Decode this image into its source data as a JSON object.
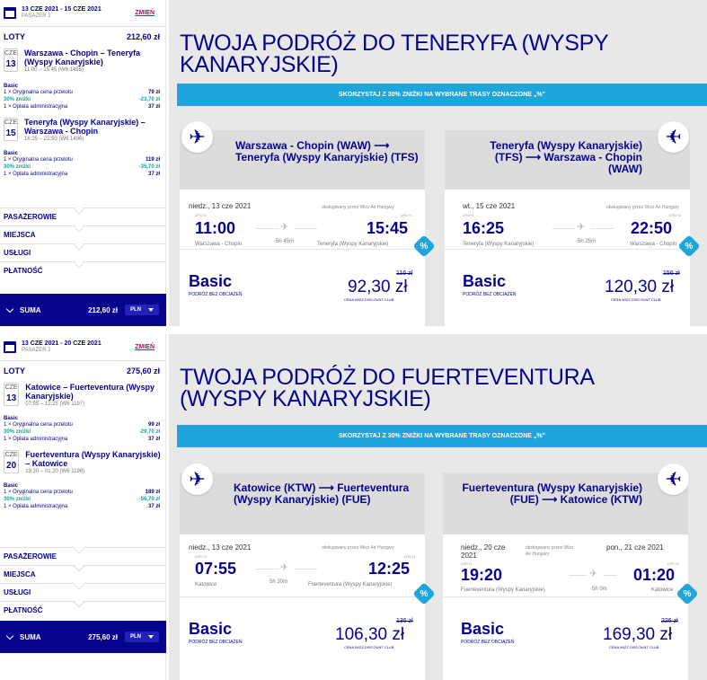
{
  "trip1": {
    "header": {
      "dates": "13 CZE 2021 - 15 CZE 2021",
      "passenger": "PASAŻER 1",
      "change": "ZMIEŃ"
    },
    "flights_label": "LOTY",
    "flights_total": "212,60 zł",
    "legs": [
      {
        "month": "CZE",
        "day": "13",
        "route": "Warszawa - Chopin – Teneryfa (Wyspy Kanaryjskie)",
        "time": "11:00 – 15:45 (W6 1495)",
        "fare_name": "Basic",
        "lines": [
          {
            "label": "1 × Oryginalna cena przelotu",
            "value": "79 zł",
            "disc": false
          },
          {
            "label": "30% zniżki",
            "value": "-23,70 zł",
            "disc": true
          },
          {
            "label": "1 × Opłata administracyjna",
            "value": "37 zł",
            "disc": false
          }
        ]
      },
      {
        "month": "CZE",
        "day": "15",
        "route": "Teneryfa (Wyspy Kanaryjskie) – Warszawa - Chopin",
        "time": "16:25 – 22:50 (W6 1496)",
        "fare_name": "Basic",
        "lines": [
          {
            "label": "1 × Oryginalna cena przelotu",
            "value": "119 zł",
            "disc": false
          },
          {
            "label": "30% zniżki",
            "value": "-35,70 zł",
            "disc": true
          },
          {
            "label": "1 × Opłata administracyjna",
            "value": "37 zł",
            "disc": false
          }
        ]
      }
    ],
    "sections": [
      "PASAŻEROWIE",
      "MIEJSCA",
      "USŁUGI",
      "PŁATNOŚĆ"
    ],
    "sum_label": "SUMA",
    "sum_value": "212,60 zł",
    "currency": "PLN",
    "title": "TWOJA PODRÓŻ DO TENERYFA (WYSPY KANARYJSKIE)",
    "banner": "SKORZYSTAJ Z 30% ZNIŻKI NA WYBRANE TRASY OZNACZONE „%\"",
    "cards": [
      {
        "route": "Warszawa - Chopin (WAW) ⟶ Teneryfa (Wyspy Kanaryjskie) (TFS)",
        "dep_date": "niedz., 13 cze 2021",
        "arr_date": "",
        "operated": "obsługiwany przez Wizz Air Hungary",
        "dep_utc": "UTC+2",
        "arr_utc": "UTC+1",
        "dep_time": "11:00",
        "arr_time": "15:45",
        "duration": "5h 45m",
        "dep_airport": "Warszawa - Chopin",
        "arr_airport": "Teneryfa (Wyspy Kanaryjskie)",
        "fare": "Basic",
        "fare_sub": "PODRÓŻ BEZ OBCIĄŻEŃ",
        "old_price": "116 zł",
        "price": "92,30 zł",
        "club": "CENA WIZZ DISCOUNT CLUB",
        "pct": "%"
      },
      {
        "route": "Teneryfa (Wyspy Kanaryjskie) (TFS) ⟶ Warszawa - Chopin (WAW)",
        "dep_date": "wt., 15 cze 2021",
        "arr_date": "",
        "operated": "obsługiwany przez Wizz Air Hungary",
        "dep_utc": "UTC+1",
        "arr_utc": "UTC+2",
        "dep_time": "16:25",
        "arr_time": "22:50",
        "duration": "5h 25m",
        "dep_airport": "Teneryfa (Wyspy Kanaryjskie)",
        "arr_airport": "Warszawa - Chopin",
        "fare": "Basic",
        "fare_sub": "PODRÓŻ BEZ OBCIĄŻEŃ",
        "old_price": "156 zł",
        "price": "120,30 zł",
        "club": "CENA WIZZ DISCOUNT CLUB",
        "pct": "%"
      }
    ]
  },
  "trip2": {
    "header": {
      "dates": "13 CZE 2021 - 20 CZE 2021",
      "passenger": "PASAŻER 1",
      "change": "ZMIEŃ"
    },
    "flights_label": "LOTY",
    "flights_total": "275,60 zł",
    "legs": [
      {
        "month": "CZE",
        "day": "13",
        "route": "Katowice – Fuerteventura (Wyspy Kanaryjskie)",
        "time": "07:55 – 12:25 (W6 1197)",
        "fare_name": "Basic",
        "lines": [
          {
            "label": "1 × Oryginalna cena przelotu",
            "value": "99 zł",
            "disc": false
          },
          {
            "label": "30% zniżki",
            "value": "-29,70 zł",
            "disc": true
          },
          {
            "label": "1 × Opłata administracyjna",
            "value": "37 zł",
            "disc": false
          }
        ]
      },
      {
        "month": "CZE",
        "day": "20",
        "route": "Fuerteventura (Wyspy Kanaryjskie) – Katowice",
        "time": "19:20 – 01:20 (W6 1198)",
        "fare_name": "Basic",
        "lines": [
          {
            "label": "1 × Oryginalna cena przelotu",
            "value": "189 zł",
            "disc": false
          },
          {
            "label": "30% zniżki",
            "value": "-56,70 zł",
            "disc": true
          },
          {
            "label": "1 × Opłata administracyjna",
            "value": "37 zł",
            "disc": false
          }
        ]
      }
    ],
    "sections": [
      "PASAŻEROWIE",
      "MIEJSCA",
      "USŁUGI",
      "PŁATNOŚĆ"
    ],
    "sum_label": "SUMA",
    "sum_value": "275,60 zł",
    "currency": "PLN",
    "title": "TWOJA PODRÓŻ DO FUERTEVENTURA (WYSPY KANARYJSKIE)",
    "banner": "SKORZYSTAJ Z 30% ZNIŻKI NA WYBRANE TRASY OZNACZONE „%\"",
    "cards": [
      {
        "route": "Katowice (KTW) ⟶ Fuerteventura (Wyspy Kanaryjskie) (FUE)",
        "dep_date": "niedz., 13 cze 2021",
        "arr_date": "",
        "operated": "obsługiwany przez Wizz Air Hungary",
        "dep_utc": "UTC+2",
        "arr_utc": "UTC+1",
        "dep_time": "07:55",
        "arr_time": "12:25",
        "duration": "5h 30m",
        "dep_airport": "Katowice",
        "arr_airport": "Fuerteventura (Wyspy Kanaryjskie)",
        "fare": "Basic",
        "fare_sub": "PODRÓŻ BEZ OBCIĄŻEŃ",
        "old_price": "136 zł",
        "price": "106,30 zł",
        "club": "CENA WIZZ DISCOUNT CLUB",
        "pct": "%"
      },
      {
        "route": "Fuerteventura (Wyspy Kanaryjskie) (FUE) ⟶ Katowice (KTW)",
        "dep_date": "niedz., 20 cze 2021",
        "arr_date": "pon., 21 cze 2021",
        "operated": "obsługiwany przez Wizz Air Hungary",
        "dep_utc": "UTC+1",
        "arr_utc": "UTC+2",
        "dep_time": "19:20",
        "arr_time": "01:20",
        "duration": "5h 0m",
        "dep_airport": "Fuerteventura (Wyspy Kanaryjskie)",
        "arr_airport": "Katowice",
        "fare": "Basic",
        "fare_sub": "PODRÓŻ BEZ OBCIĄŻEŃ",
        "old_price": "226 zł",
        "price": "169,30 zł",
        "club": "CENA WIZZ DISCOUNT CLUB",
        "pct": "%"
      }
    ]
  },
  "icons": {
    "calendar": "calendar-icon",
    "plane": "plane-icon",
    "percent": "percent-badge-icon"
  },
  "colors": {
    "brand": "#06038d",
    "accent": "#c6007e",
    "banner": "#1fa5dc",
    "discount": "#0fa3a3"
  }
}
